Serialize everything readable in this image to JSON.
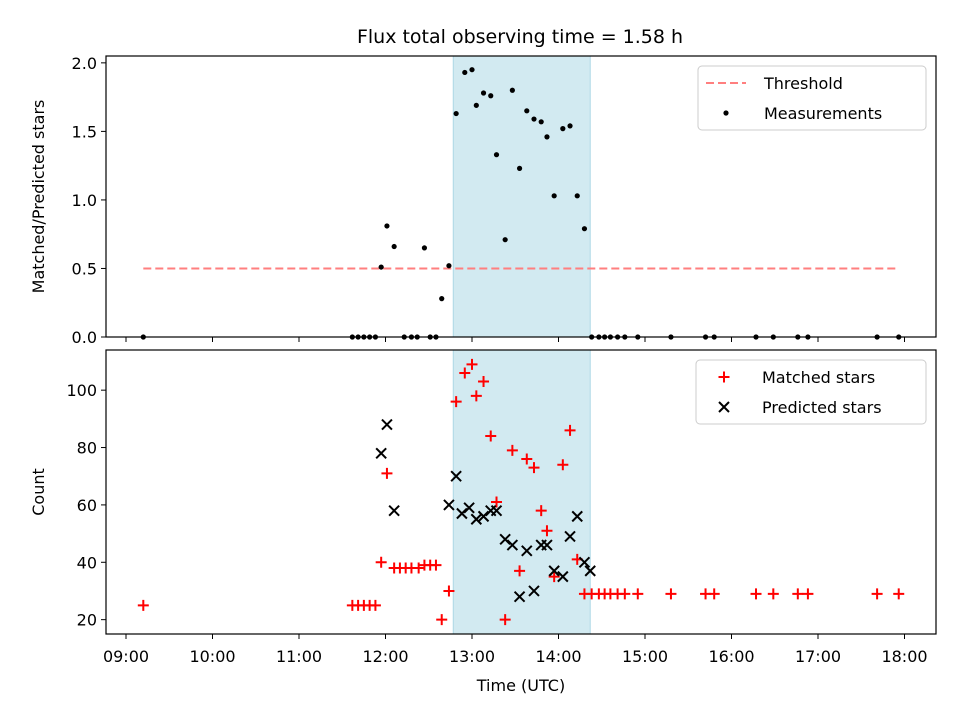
{
  "title": "Flux total observing time = 1.58 h",
  "chart_data": [
    {
      "type": "scatter",
      "ylabel": "Matched/Predicted stars",
      "xlabel": "",
      "xlim": [
        "09:00",
        "18:00"
      ],
      "ylim": [
        0,
        2.05
      ],
      "yticks": [
        0.0,
        0.5,
        1.0,
        1.5,
        2.0
      ],
      "ytick_labels": [
        "0.0",
        "0.5",
        "1.0",
        "1.5",
        "2.0"
      ],
      "shaded_interval": {
        "start": "12:47",
        "end": "14:22",
        "color": "#add8e6"
      },
      "legend": {
        "placement": "upper right"
      },
      "series": [
        {
          "name": "Threshold",
          "style": "dashed-line",
          "color": "#ff7f7f",
          "x": [
            "09:12",
            "17:56"
          ],
          "y": [
            0.5,
            0.5
          ]
        },
        {
          "name": "Measurements",
          "style": "dot",
          "color": "#000000",
          "x": [
            "09:12",
            "11:37",
            "11:41",
            "11:45",
            "11:49",
            "11:53",
            "11:57",
            "12:01",
            "12:06",
            "12:13",
            "12:18",
            "12:22",
            "12:27",
            "12:31",
            "12:35",
            "12:39",
            "12:44",
            "12:49",
            "12:55",
            "13:00",
            "13:03",
            "13:08",
            "13:13",
            "13:17",
            "13:23",
            "13:28",
            "13:33",
            "13:38",
            "13:43",
            "13:48",
            "13:52",
            "13:57",
            "14:03",
            "14:08",
            "14:13",
            "14:18",
            "14:23",
            "14:28",
            "14:32",
            "14:36",
            "14:41",
            "14:46",
            "14:55",
            "15:18",
            "15:42",
            "15:48",
            "16:17",
            "16:29",
            "16:46",
            "16:53",
            "17:41",
            "17:56"
          ],
          "y": [
            0,
            0,
            0,
            0,
            0,
            0,
            0.51,
            0.81,
            0.66,
            0,
            0,
            0,
            0.65,
            0,
            0,
            0.28,
            0.52,
            1.63,
            1.93,
            1.95,
            1.69,
            1.78,
            1.76,
            1.33,
            0.71,
            1.8,
            1.23,
            1.65,
            1.59,
            1.57,
            1.46,
            1.03,
            1.52,
            1.54,
            1.03,
            0.79,
            0,
            0,
            0,
            0,
            0,
            0,
            0,
            0,
            0,
            0,
            0,
            0,
            0,
            0,
            0,
            0
          ]
        }
      ]
    },
    {
      "type": "scatter",
      "ylabel": "Count",
      "xlabel": "Time (UTC)",
      "xlim": [
        "09:00",
        "18:00"
      ],
      "ylim": [
        15,
        114
      ],
      "yticks": [
        20,
        40,
        60,
        80,
        100
      ],
      "ytick_labels": [
        "20",
        "40",
        "60",
        "80",
        "100"
      ],
      "xticks": [
        "09:00",
        "10:00",
        "11:00",
        "12:00",
        "13:00",
        "14:00",
        "15:00",
        "16:00",
        "17:00",
        "18:00"
      ],
      "shaded_interval": {
        "start": "12:47",
        "end": "14:22",
        "color": "#add8e6"
      },
      "legend": {
        "placement": "upper right"
      },
      "series": [
        {
          "name": "Matched stars",
          "marker": "plus",
          "color": "#ff0000",
          "x": [
            "09:12",
            "11:37",
            "11:41",
            "11:45",
            "11:49",
            "11:53",
            "11:57",
            "12:01",
            "12:06",
            "12:10",
            "12:14",
            "12:18",
            "12:23",
            "12:27",
            "12:31",
            "12:35",
            "12:39",
            "12:44",
            "12:49",
            "12:55",
            "13:00",
            "13:03",
            "13:08",
            "13:13",
            "13:17",
            "13:23",
            "13:28",
            "13:33",
            "13:38",
            "13:43",
            "13:48",
            "13:52",
            "13:57",
            "14:03",
            "14:08",
            "14:13",
            "14:18",
            "14:23",
            "14:28",
            "14:32",
            "14:36",
            "14:41",
            "14:46",
            "14:55",
            "15:18",
            "15:42",
            "15:48",
            "16:17",
            "16:29",
            "16:46",
            "16:53",
            "17:41",
            "17:56"
          ],
          "y": [
            25,
            25,
            25,
            25,
            25,
            25,
            40,
            71,
            38,
            38,
            38,
            38,
            38,
            39,
            39,
            39,
            20,
            30,
            96,
            106,
            109,
            98,
            103,
            84,
            61,
            20,
            79,
            37,
            76,
            73,
            58,
            51,
            35,
            74,
            86,
            41,
            29,
            29,
            29,
            29,
            29,
            29,
            29,
            29,
            29,
            29,
            29,
            29,
            29,
            29,
            29,
            29,
            29
          ]
        },
        {
          "name": "Predicted stars",
          "marker": "x",
          "color": "#000000",
          "x": [
            "11:57",
            "12:01",
            "12:06",
            "12:44",
            "12:49",
            "12:53",
            "12:58",
            "13:03",
            "13:08",
            "13:13",
            "13:17",
            "13:23",
            "13:28",
            "13:33",
            "13:38",
            "13:43",
            "13:48",
            "13:52",
            "13:57",
            "14:03",
            "14:08",
            "14:13",
            "14:18",
            "14:22"
          ],
          "y": [
            78,
            88,
            58,
            60,
            70,
            57,
            59,
            55,
            56,
            58,
            58,
            48,
            46,
            28,
            44,
            30,
            46,
            46,
            37,
            35,
            49,
            56,
            40,
            37
          ]
        }
      ]
    }
  ]
}
